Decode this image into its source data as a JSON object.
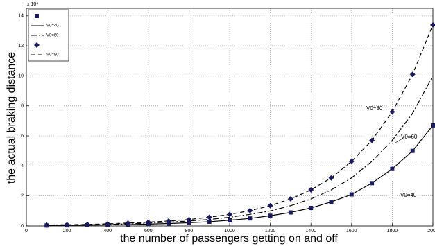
{
  "chart_data": {
    "type": "line",
    "x_label": "the number of passengers getting on and off",
    "y_label": "the actual braking distance",
    "y_multiplier": "x 10⁴",
    "x": [
      100,
      200,
      300,
      400,
      500,
      600,
      700,
      800,
      900,
      1000,
      1100,
      1200,
      1300,
      1400,
      1500,
      1600,
      1700,
      1800,
      1900,
      2000
    ],
    "series": [
      {
        "name": "V0=40",
        "color": "#000000",
        "marker": "square",
        "marker_color": "#1a1a5e",
        "dash": "solid",
        "values": [
          0.03,
          0.04,
          0.05,
          0.07,
          0.09,
          0.12,
          0.16,
          0.21,
          0.28,
          0.38,
          0.5,
          0.68,
          0.9,
          1.2,
          1.6,
          2.1,
          2.85,
          3.8,
          5.0,
          6.7
        ]
      },
      {
        "name": "V0=60",
        "color": "#000000",
        "dash": "dashdot",
        "values": [
          0.04,
          0.06,
          0.08,
          0.1,
          0.14,
          0.19,
          0.25,
          0.33,
          0.43,
          0.58,
          0.77,
          1.0,
          1.35,
          1.8,
          2.4,
          3.2,
          4.3,
          5.7,
          7.5,
          10.0
        ]
      },
      {
        "name": "V0=80",
        "color": "#000000",
        "marker": "diamond",
        "marker_color": "#1a1a5e",
        "dash": "dashed",
        "values": [
          0.06,
          0.08,
          0.1,
          0.14,
          0.19,
          0.25,
          0.33,
          0.43,
          0.58,
          0.77,
          1.02,
          1.35,
          1.8,
          2.4,
          3.2,
          4.3,
          5.7,
          7.6,
          10.1,
          13.4
        ]
      }
    ],
    "annotations": [
      "V0=80→",
      "V0=60",
      "V0=40"
    ],
    "xlim": [
      0,
      2000
    ],
    "xticks": [
      0,
      200,
      400,
      600,
      800,
      1000,
      1200,
      1400,
      1600,
      1800,
      2000
    ],
    "ylim": [
      0,
      14.5
    ],
    "yticks": [
      0,
      2,
      4,
      6,
      8,
      10,
      12,
      14
    ],
    "grid": true,
    "legend": "upper left"
  }
}
